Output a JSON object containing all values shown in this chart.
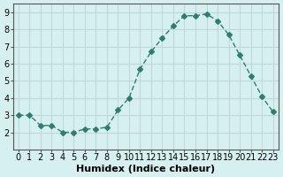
{
  "x": [
    0,
    1,
    2,
    3,
    4,
    5,
    6,
    7,
    8,
    9,
    10,
    11,
    12,
    13,
    14,
    15,
    16,
    17,
    18,
    19,
    20,
    21,
    22,
    23
  ],
  "y": [
    3.0,
    3.0,
    2.4,
    2.4,
    2.0,
    2.0,
    2.2,
    2.2,
    2.3,
    3.3,
    4.0,
    5.7,
    6.7,
    7.5,
    8.2,
    8.8,
    8.8,
    8.9,
    8.5,
    7.7,
    6.5,
    5.3,
    4.1,
    3.2
  ],
  "line_color": "#2e7d6e",
  "marker": "D",
  "marker_size": 3,
  "bg_color": "#d6f0ef",
  "grid_color": "#c0d8d8",
  "axis_color": "#555555",
  "xlabel": "Humidex (Indice chaleur)",
  "xlim": [
    -0.5,
    23.5
  ],
  "ylim": [
    1.0,
    9.5
  ],
  "yticks": [
    2,
    3,
    4,
    5,
    6,
    7,
    8,
    9
  ],
  "xticks": [
    0,
    1,
    2,
    3,
    4,
    5,
    6,
    7,
    8,
    9,
    10,
    11,
    12,
    13,
    14,
    15,
    16,
    17,
    18,
    19,
    20,
    21,
    22,
    23
  ],
  "xlabel_fontsize": 8,
  "tick_fontsize": 7
}
